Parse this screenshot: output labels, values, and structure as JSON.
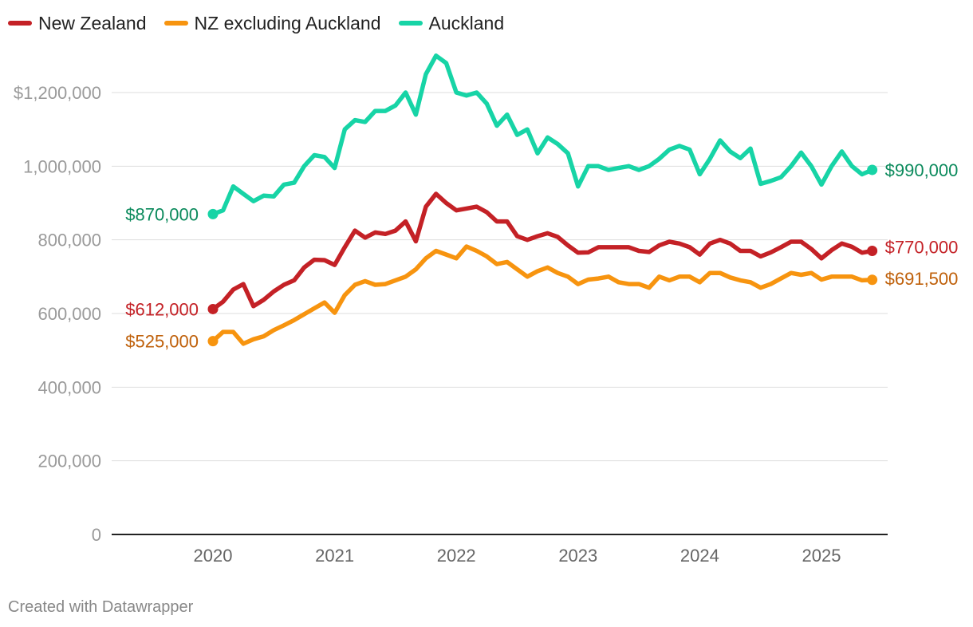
{
  "legend": [
    {
      "label": "New Zealand",
      "color": "#c42126"
    },
    {
      "label": "NZ excluding Auckland",
      "color": "#f7940f"
    },
    {
      "label": "Auckland",
      "color": "#17d4a6"
    }
  ],
  "footer": "Created with Datawrapper",
  "chart_data": {
    "type": "line",
    "title": "",
    "xlabel": "",
    "ylabel": "",
    "xlim": [
      2019.25,
      2025.6
    ],
    "ylim": [
      0,
      1300000
    ],
    "grid": true,
    "legend_position": "top-left",
    "y_ticks": [
      {
        "value": 0,
        "label": "0"
      },
      {
        "value": 200000,
        "label": "200,000"
      },
      {
        "value": 400000,
        "label": "400,000"
      },
      {
        "value": 600000,
        "label": "600,000"
      },
      {
        "value": 800000,
        "label": "800,000"
      },
      {
        "value": 1000000,
        "label": "1,000,000"
      },
      {
        "value": 1200000,
        "label": "$1,200,000"
      }
    ],
    "x_ticks": [
      {
        "value": 2020,
        "label": "2020"
      },
      {
        "value": 2021,
        "label": "2021"
      },
      {
        "value": 2022,
        "label": "2022"
      },
      {
        "value": 2023,
        "label": "2023"
      },
      {
        "value": 2024,
        "label": "2024"
      },
      {
        "value": 2025,
        "label": "2025"
      }
    ],
    "series": [
      {
        "name": "Auckland",
        "color": "#17d4a6",
        "label_color": "#0b8a5c",
        "start_label": "$870,000",
        "end_label": "$990,000",
        "points": [
          [
            2020.0,
            870000
          ],
          [
            2020.083,
            880000
          ],
          [
            2020.167,
            945000
          ],
          [
            2020.25,
            925000
          ],
          [
            2020.333,
            905000
          ],
          [
            2020.417,
            920000
          ],
          [
            2020.5,
            918000
          ],
          [
            2020.583,
            950000
          ],
          [
            2020.667,
            955000
          ],
          [
            2020.75,
            1000000
          ],
          [
            2020.833,
            1030000
          ],
          [
            2020.917,
            1025000
          ],
          [
            2021.0,
            995000
          ],
          [
            2021.083,
            1100000
          ],
          [
            2021.167,
            1125000
          ],
          [
            2021.25,
            1120000
          ],
          [
            2021.333,
            1150000
          ],
          [
            2021.417,
            1150000
          ],
          [
            2021.5,
            1165000
          ],
          [
            2021.583,
            1200000
          ],
          [
            2021.667,
            1140000
          ],
          [
            2021.75,
            1250000
          ],
          [
            2021.833,
            1300000
          ],
          [
            2021.917,
            1280000
          ],
          [
            2022.0,
            1200000
          ],
          [
            2022.083,
            1192000
          ],
          [
            2022.167,
            1200000
          ],
          [
            2022.25,
            1170000
          ],
          [
            2022.333,
            1110000
          ],
          [
            2022.417,
            1140000
          ],
          [
            2022.5,
            1085000
          ],
          [
            2022.583,
            1100000
          ],
          [
            2022.667,
            1035000
          ],
          [
            2022.75,
            1078000
          ],
          [
            2022.833,
            1060000
          ],
          [
            2022.917,
            1035000
          ],
          [
            2023.0,
            945000
          ],
          [
            2023.083,
            1000000
          ],
          [
            2023.167,
            1000000
          ],
          [
            2023.25,
            990000
          ],
          [
            2023.333,
            995000
          ],
          [
            2023.417,
            1000000
          ],
          [
            2023.5,
            990000
          ],
          [
            2023.583,
            1000000
          ],
          [
            2023.667,
            1020000
          ],
          [
            2023.75,
            1045000
          ],
          [
            2023.833,
            1055000
          ],
          [
            2023.917,
            1045000
          ],
          [
            2024.0,
            978000
          ],
          [
            2024.083,
            1020000
          ],
          [
            2024.167,
            1070000
          ],
          [
            2024.25,
            1040000
          ],
          [
            2024.333,
            1022000
          ],
          [
            2024.417,
            1048000
          ],
          [
            2024.5,
            952000
          ],
          [
            2024.583,
            960000
          ],
          [
            2024.667,
            970000
          ],
          [
            2024.75,
            1000000
          ],
          [
            2024.833,
            1037000
          ],
          [
            2024.917,
            1000000
          ],
          [
            2025.0,
            950000
          ],
          [
            2025.083,
            1000000
          ],
          [
            2025.167,
            1040000
          ],
          [
            2025.25,
            1000000
          ],
          [
            2025.333,
            978000
          ],
          [
            2025.417,
            990000
          ]
        ]
      },
      {
        "name": "New Zealand",
        "color": "#c42126",
        "label_color": "#c42126",
        "start_label": "$612,000",
        "end_label": "$770,000",
        "points": [
          [
            2020.0,
            612000
          ],
          [
            2020.083,
            632000
          ],
          [
            2020.167,
            665000
          ],
          [
            2020.25,
            680000
          ],
          [
            2020.333,
            620000
          ],
          [
            2020.417,
            637000
          ],
          [
            2020.5,
            660000
          ],
          [
            2020.583,
            678000
          ],
          [
            2020.667,
            690000
          ],
          [
            2020.75,
            725000
          ],
          [
            2020.833,
            746000
          ],
          [
            2020.917,
            745000
          ],
          [
            2021.0,
            732000
          ],
          [
            2021.083,
            780000
          ],
          [
            2021.167,
            825000
          ],
          [
            2021.25,
            806000
          ],
          [
            2021.333,
            820000
          ],
          [
            2021.417,
            816000
          ],
          [
            2021.5,
            825000
          ],
          [
            2021.583,
            850000
          ],
          [
            2021.667,
            796000
          ],
          [
            2021.75,
            890000
          ],
          [
            2021.833,
            925000
          ],
          [
            2021.917,
            900000
          ],
          [
            2022.0,
            880000
          ],
          [
            2022.083,
            885000
          ],
          [
            2022.167,
            890000
          ],
          [
            2022.25,
            875000
          ],
          [
            2022.333,
            850000
          ],
          [
            2022.417,
            850000
          ],
          [
            2022.5,
            810000
          ],
          [
            2022.583,
            800000
          ],
          [
            2022.667,
            810000
          ],
          [
            2022.75,
            818000
          ],
          [
            2022.833,
            808000
          ],
          [
            2022.917,
            785000
          ],
          [
            2023.0,
            765000
          ],
          [
            2023.083,
            766000
          ],
          [
            2023.167,
            780000
          ],
          [
            2023.25,
            780000
          ],
          [
            2023.333,
            780000
          ],
          [
            2023.417,
            780000
          ],
          [
            2023.5,
            770000
          ],
          [
            2023.583,
            767000
          ],
          [
            2023.667,
            785000
          ],
          [
            2023.75,
            795000
          ],
          [
            2023.833,
            790000
          ],
          [
            2023.917,
            780000
          ],
          [
            2024.0,
            760000
          ],
          [
            2024.083,
            790000
          ],
          [
            2024.167,
            800000
          ],
          [
            2024.25,
            790000
          ],
          [
            2024.333,
            770000
          ],
          [
            2024.417,
            770000
          ],
          [
            2024.5,
            755000
          ],
          [
            2024.583,
            766000
          ],
          [
            2024.667,
            780000
          ],
          [
            2024.75,
            795000
          ],
          [
            2024.833,
            795000
          ],
          [
            2024.917,
            775000
          ],
          [
            2025.0,
            750000
          ],
          [
            2025.083,
            772000
          ],
          [
            2025.167,
            790000
          ],
          [
            2025.25,
            781000
          ],
          [
            2025.333,
            765000
          ],
          [
            2025.417,
            770000
          ]
        ]
      },
      {
        "name": "NZ excluding Auckland",
        "color": "#f7940f",
        "label_color": "#bf600a",
        "start_label": "$525,000",
        "end_label": "$691,500",
        "points": [
          [
            2020.0,
            525000
          ],
          [
            2020.083,
            550000
          ],
          [
            2020.167,
            550000
          ],
          [
            2020.25,
            518000
          ],
          [
            2020.333,
            530000
          ],
          [
            2020.417,
            538000
          ],
          [
            2020.5,
            555000
          ],
          [
            2020.583,
            568000
          ],
          [
            2020.667,
            582000
          ],
          [
            2020.75,
            598000
          ],
          [
            2020.833,
            614000
          ],
          [
            2020.917,
            630000
          ],
          [
            2021.0,
            602000
          ],
          [
            2021.083,
            650000
          ],
          [
            2021.167,
            678000
          ],
          [
            2021.25,
            688000
          ],
          [
            2021.333,
            678000
          ],
          [
            2021.417,
            680000
          ],
          [
            2021.5,
            690000
          ],
          [
            2021.583,
            700000
          ],
          [
            2021.667,
            720000
          ],
          [
            2021.75,
            750000
          ],
          [
            2021.833,
            770000
          ],
          [
            2021.917,
            760000
          ],
          [
            2022.0,
            750000
          ],
          [
            2022.083,
            782000
          ],
          [
            2022.167,
            770000
          ],
          [
            2022.25,
            755000
          ],
          [
            2022.333,
            734000
          ],
          [
            2022.417,
            740000
          ],
          [
            2022.5,
            720000
          ],
          [
            2022.583,
            700000
          ],
          [
            2022.667,
            715000
          ],
          [
            2022.75,
            725000
          ],
          [
            2022.833,
            710000
          ],
          [
            2022.917,
            700000
          ],
          [
            2023.0,
            680000
          ],
          [
            2023.083,
            692000
          ],
          [
            2023.167,
            695000
          ],
          [
            2023.25,
            700000
          ],
          [
            2023.333,
            685000
          ],
          [
            2023.417,
            680000
          ],
          [
            2023.5,
            680000
          ],
          [
            2023.583,
            670000
          ],
          [
            2023.667,
            700000
          ],
          [
            2023.75,
            690000
          ],
          [
            2023.833,
            700000
          ],
          [
            2023.917,
            700000
          ],
          [
            2024.0,
            685000
          ],
          [
            2024.083,
            710000
          ],
          [
            2024.167,
            710000
          ],
          [
            2024.25,
            698000
          ],
          [
            2024.333,
            690000
          ],
          [
            2024.417,
            685000
          ],
          [
            2024.5,
            670000
          ],
          [
            2024.583,
            680000
          ],
          [
            2024.667,
            695000
          ],
          [
            2024.75,
            710000
          ],
          [
            2024.833,
            705000
          ],
          [
            2024.917,
            710000
          ],
          [
            2025.0,
            692000
          ],
          [
            2025.083,
            700000
          ],
          [
            2025.167,
            700000
          ],
          [
            2025.25,
            700000
          ],
          [
            2025.333,
            690000
          ],
          [
            2025.417,
            691500
          ]
        ]
      }
    ]
  }
}
